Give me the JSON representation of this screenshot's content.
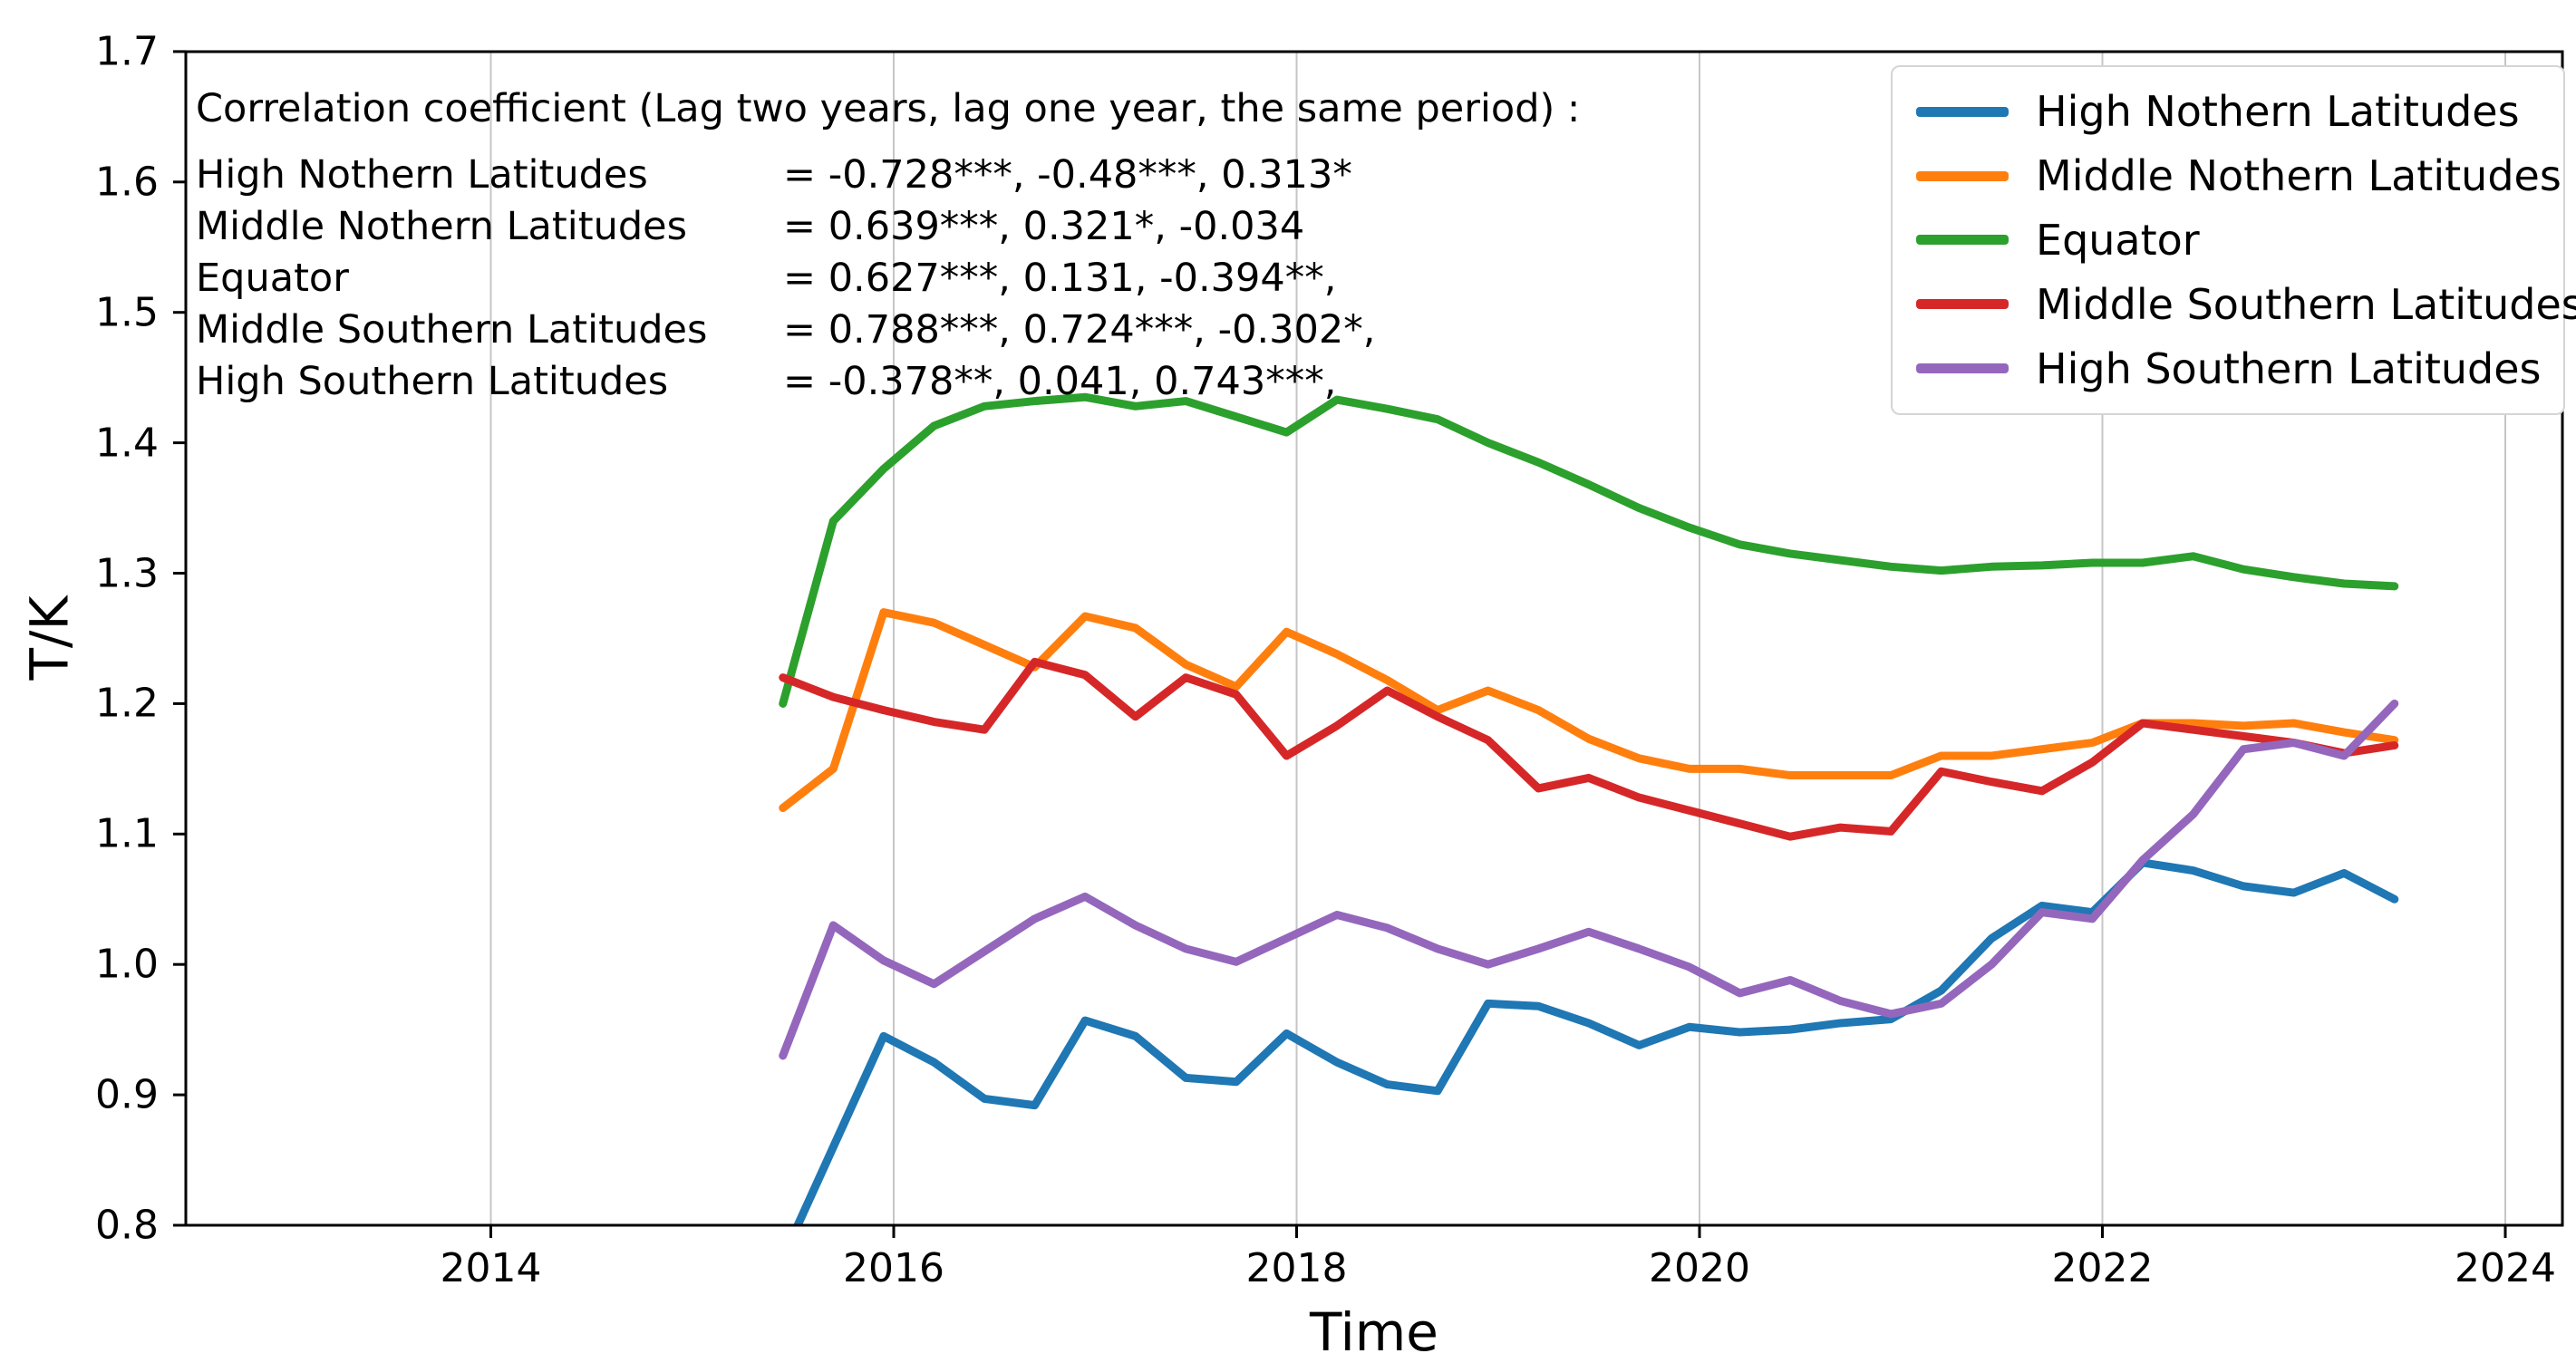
{
  "figure": {
    "background": "#ffffff",
    "text_color": "#000000",
    "grid_color": "#c6c6c6",
    "spine_color": "#000000"
  },
  "axes": {
    "xlabel": "Time",
    "ylabel": "T/K",
    "x_ticks": [
      2014,
      2016,
      2018,
      2020,
      2022,
      2024
    ],
    "x_tick_labels": [
      "2014",
      "2016",
      "2018",
      "2020",
      "2022",
      "2024"
    ],
    "y_ticks": [
      1.7,
      1.6,
      1.5,
      1.4,
      1.3,
      1.2,
      1.1,
      1.0,
      0.9,
      0.8
    ],
    "y_tick_labels": [
      "1.7",
      "1.6",
      "1.5",
      "1.4",
      "1.3",
      "1.2",
      "1.1",
      "1.0",
      "0.9",
      "0.8"
    ],
    "grid": "vertical gridlines only"
  },
  "annotation": {
    "title": "Correlation coefficient (Lag two years, lag one year, the same period) :",
    "rows": [
      {
        "name": "High Nothern Latitudes",
        "values": "= -0.728***, -0.48***, 0.313*"
      },
      {
        "name": "Middle Nothern Latitudes",
        "values": "= 0.639***, 0.321*, -0.034"
      },
      {
        "name": "Equator",
        "values": "= 0.627***, 0.131, -0.394**,"
      },
      {
        "name": "Middle Southern Latitudes",
        "values": "= 0.788***, 0.724***, -0.302*,"
      },
      {
        "name": "High Southern Latitudes",
        "values": "= -0.378**, 0.041, 0.743***,"
      }
    ]
  },
  "chart_data": {
    "type": "line",
    "title": "",
    "xlabel": "Time",
    "ylabel": "T/K",
    "xlim": [
      2012.5,
      2024.3
    ],
    "ylim": [
      0.8,
      1.7
    ],
    "legend_position": "upper right",
    "grid": "vertical x-gridlines only",
    "x": [
      2015.45,
      2015.7,
      2015.95,
      2016.2,
      2016.45,
      2016.7,
      2016.95,
      2017.2,
      2017.45,
      2017.7,
      2017.95,
      2018.2,
      2018.45,
      2018.7,
      2018.95,
      2019.2,
      2019.45,
      2019.7,
      2019.95,
      2020.2,
      2020.45,
      2020.7,
      2020.95,
      2021.2,
      2021.45,
      2021.7,
      2021.95,
      2022.2,
      2022.45,
      2022.7,
      2022.95,
      2023.2,
      2023.45
    ],
    "series": [
      {
        "name": "High Nothern Latitudes",
        "color": "#1f77b4",
        "values": [
          0.775,
          0.86,
          0.945,
          0.925,
          0.897,
          0.892,
          0.957,
          0.945,
          0.913,
          0.91,
          0.947,
          0.925,
          0.908,
          0.903,
          0.97,
          0.968,
          0.955,
          0.938,
          0.952,
          0.948,
          0.95,
          0.955,
          0.958,
          0.98,
          1.02,
          1.045,
          1.04,
          1.078,
          1.072,
          1.06,
          1.055,
          1.07,
          1.05
        ]
      },
      {
        "name": "Middle Nothern Latitudes",
        "color": "#ff7f0e",
        "values": [
          1.12,
          1.15,
          1.27,
          1.262,
          1.245,
          1.228,
          1.267,
          1.258,
          1.23,
          1.213,
          1.255,
          1.238,
          1.218,
          1.195,
          1.21,
          1.195,
          1.173,
          1.158,
          1.15,
          1.15,
          1.145,
          1.145,
          1.145,
          1.16,
          1.16,
          1.165,
          1.17,
          1.185,
          1.185,
          1.183,
          1.185,
          1.178,
          1.172
        ]
      },
      {
        "name": "Equator",
        "color": "#2ca02c",
        "values": [
          1.2,
          1.34,
          1.38,
          1.413,
          1.428,
          1.432,
          1.435,
          1.428,
          1.432,
          1.42,
          1.408,
          1.433,
          1.426,
          1.418,
          1.4,
          1.385,
          1.368,
          1.35,
          1.335,
          1.322,
          1.315,
          1.31,
          1.305,
          1.302,
          1.305,
          1.306,
          1.308,
          1.308,
          1.313,
          1.303,
          1.297,
          1.292,
          1.29
        ]
      },
      {
        "name": "Middle Southern Latitudes",
        "color": "#d62728",
        "values": [
          1.22,
          1.205,
          1.195,
          1.186,
          1.18,
          1.232,
          1.222,
          1.19,
          1.22,
          1.207,
          1.16,
          1.183,
          1.21,
          1.19,
          1.172,
          1.135,
          1.143,
          1.128,
          1.118,
          1.108,
          1.098,
          1.105,
          1.102,
          1.148,
          1.14,
          1.133,
          1.155,
          1.185,
          1.18,
          1.175,
          1.17,
          1.162,
          1.168
        ]
      },
      {
        "name": "High Southern Latitudes",
        "color": "#9467bd",
        "values": [
          0.93,
          1.03,
          1.003,
          0.985,
          1.01,
          1.035,
          1.052,
          1.03,
          1.012,
          1.002,
          1.02,
          1.038,
          1.028,
          1.012,
          1.0,
          1.012,
          1.025,
          1.012,
          0.998,
          0.978,
          0.988,
          0.972,
          0.962,
          0.97,
          1.0,
          1.04,
          1.035,
          1.08,
          1.115,
          1.165,
          1.17,
          1.16,
          1.2
        ]
      }
    ]
  }
}
